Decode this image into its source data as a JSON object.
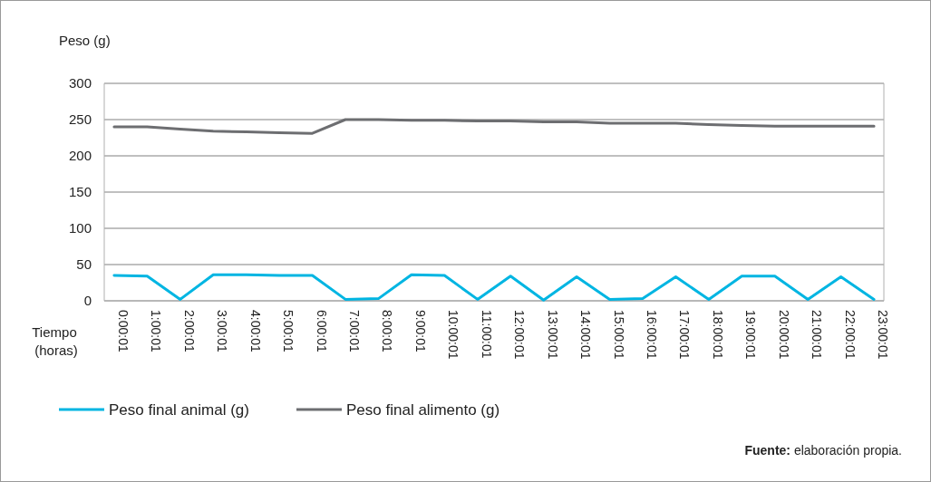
{
  "chart_data": {
    "type": "line",
    "ylabel": "Peso (g)",
    "xlabel": "Tiempo (horas)",
    "categories": [
      "0:00:01",
      "1:00:01",
      "2:00:01",
      "3:00:01",
      "4:00:01",
      "5:00:01",
      "6:00:01",
      "7:00:01",
      "8:00:01",
      "9:00:01",
      "10:00:01",
      "11:00:01",
      "12:00:01",
      "13:00:01",
      "14:00:01",
      "15:00:01",
      "16:00:01",
      "17:00:01",
      "18:00:01",
      "19:00:01",
      "20:00:01",
      "21:00:01",
      "22:00:01",
      "23:00:01"
    ],
    "series": [
      {
        "name": "Peso final animal (g)",
        "color": "#00b5e2",
        "values": [
          35,
          34,
          2,
          36,
          36,
          35,
          35,
          2,
          3,
          36,
          35,
          2,
          34,
          1,
          33,
          2,
          3,
          33,
          2,
          34,
          34,
          2,
          33,
          2
        ]
      },
      {
        "name": "Peso final alimento (g)",
        "color": "#6d6e71",
        "values": [
          240,
          240,
          237,
          234,
          233,
          232,
          231,
          250,
          250,
          249,
          249,
          248,
          248,
          247,
          247,
          245,
          245,
          245,
          243,
          242,
          241,
          241,
          241,
          241
        ]
      }
    ],
    "ylim": [
      0,
      300
    ],
    "yticks": [
      0,
      50,
      100,
      150,
      200,
      250,
      300
    ],
    "grid": "y",
    "legend": "bottom left",
    "marker": "none",
    "line_style": "solid",
    "annotations": [
      "Fuente: elaboración propia."
    ]
  }
}
